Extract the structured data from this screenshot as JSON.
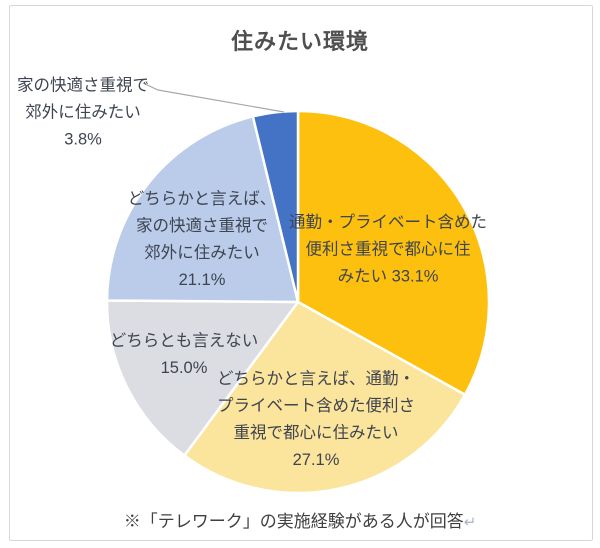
{
  "chart_data": {
    "type": "pie",
    "title": "住みたい環境",
    "footnote": "※「テレワーク」の実施経験がある人が回答",
    "footnote_mark": "↵",
    "direction": "clockwise",
    "start_angle_deg": 0,
    "legend": "none",
    "labels_show": "category-and-percent",
    "segments": [
      {
        "label": "通勤・プライベート含めた便利さ重視で都心に住みたい",
        "value": 33.1,
        "pct_text": "33.1%",
        "color": "#FDC00F",
        "label_placement": "inside",
        "label_lines": [
          "通勤・プライベート含めた",
          "便利さ重視で都心に住",
          "みたい 33.1%"
        ]
      },
      {
        "label": "どちらかと言えば、通勤・プライベート含めた便利さ重視で都心に住みたい",
        "value": 27.1,
        "pct_text": "27.1%",
        "color": "#FBE49B",
        "label_placement": "inside",
        "label_lines": [
          "どちらかと言えば、通勤・",
          "プライベート含めた便利さ",
          "重視で都心に住みたい",
          "27.1%"
        ]
      },
      {
        "label": "どちらとも言えない",
        "value": 15.0,
        "pct_text": "15.0%",
        "color": "#DBDDE2",
        "label_placement": "inside",
        "label_lines": [
          "どちらとも言えない",
          "15.0%"
        ]
      },
      {
        "label": "どちらかと言えば、家の快適さ重視で郊外に住みたい",
        "value": 21.1,
        "pct_text": "21.1%",
        "color": "#BACCEA",
        "label_placement": "inside",
        "label_lines": [
          "どちらかと言えば、",
          "家の快適さ重視で",
          "郊外に住みたい",
          "21.1%"
        ]
      },
      {
        "label": "家の快適さ重視で郊外に住みたい",
        "value": 3.8,
        "pct_text": "3.8%",
        "color": "#4472C4",
        "label_placement": "outside-with-leader-line",
        "label_lines": [
          "家の快適さ重視で",
          "郊外に住みたい",
          "3.8%"
        ]
      }
    ]
  },
  "colors": {
    "title_text": "#4F4F4F",
    "label_text": "#3E4450",
    "footnote_text": "#3F3F3F",
    "leader_line": "#A8A8A8",
    "slice_border": "#FFFFFF",
    "frame_border": "#D8D8D8"
  }
}
